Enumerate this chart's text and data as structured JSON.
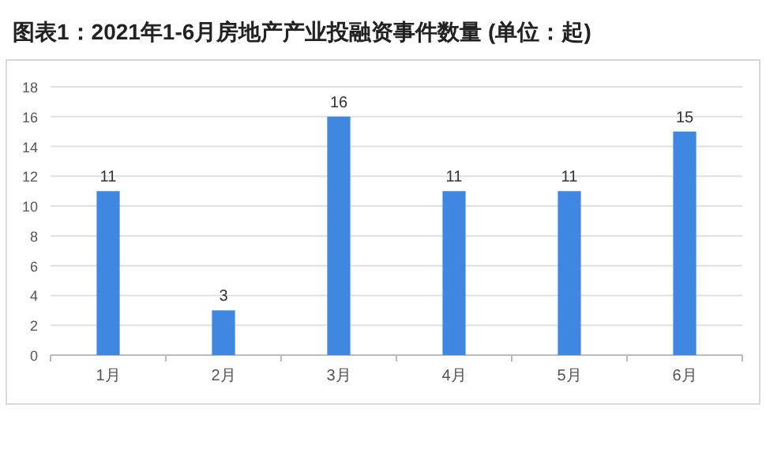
{
  "chart_data": {
    "type": "bar",
    "title": "图表1：2021年1-6月房地产产业投融资事件数量 (单位：起)",
    "categories": [
      "1月",
      "2月",
      "3月",
      "4月",
      "5月",
      "6月"
    ],
    "values": [
      11,
      3,
      16,
      11,
      11,
      15
    ],
    "color": "#3f87e0",
    "ylim": [
      0,
      18
    ],
    "yticks": [
      0,
      2,
      4,
      6,
      8,
      10,
      12,
      14,
      16,
      18
    ],
    "grid": "y",
    "data_labels": true
  }
}
